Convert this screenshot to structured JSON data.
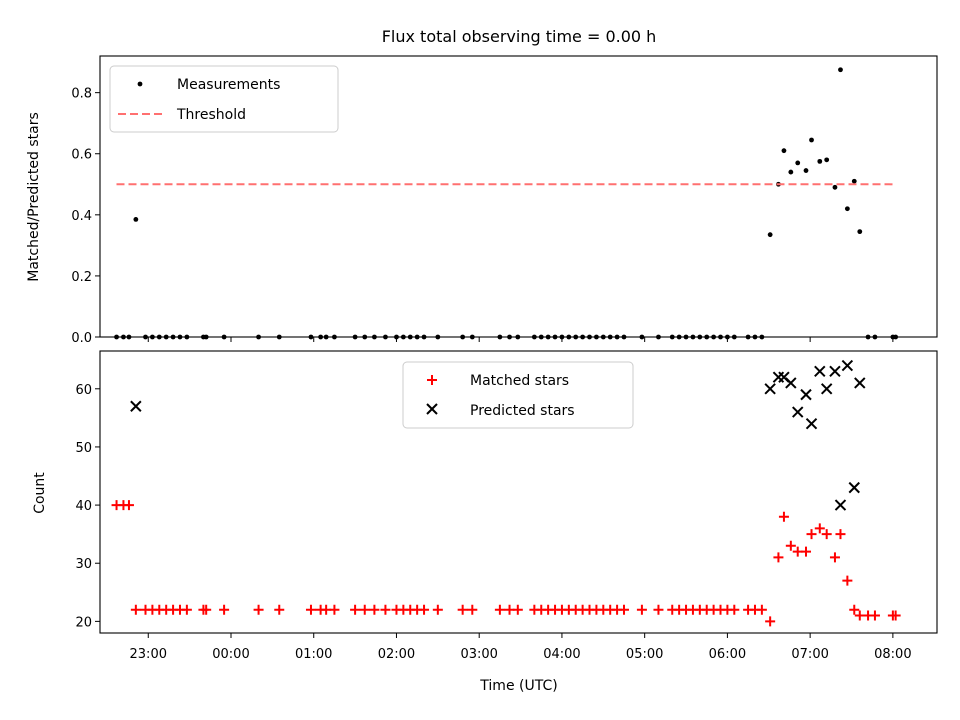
{
  "chart_data": [
    {
      "type": "scatter",
      "title": "Flux total observing time = 0.00 h",
      "xlabel": "",
      "ylabel": "Matched/Predicted stars",
      "ylim": [
        0,
        0.92
      ],
      "yticks": [
        "0.0",
        "0.2",
        "0.4",
        "0.6",
        "0.8"
      ],
      "xlim": [
        "22:25",
        "08:32"
      ],
      "legend": {
        "position": "top-left",
        "entries": [
          "Measurements",
          "Threshold"
        ]
      },
      "series": [
        {
          "name": "Measurements",
          "marker": "dot",
          "color": "#000000",
          "points": [
            [
              "22:37",
              0
            ],
            [
              "22:42",
              0
            ],
            [
              "22:46",
              0
            ],
            [
              "22:51",
              0.385
            ],
            [
              "22:58",
              0
            ],
            [
              "23:03",
              0
            ],
            [
              "23:08",
              0
            ],
            [
              "23:13",
              0
            ],
            [
              "23:18",
              0
            ],
            [
              "23:23",
              0
            ],
            [
              "23:28",
              0
            ],
            [
              "23:40",
              0
            ],
            [
              "23:42",
              0
            ],
            [
              "23:55",
              0
            ],
            [
              "24:20",
              0
            ],
            [
              "24:35",
              0
            ],
            [
              "24:58",
              0
            ],
            [
              "25:05",
              0
            ],
            [
              "25:09",
              0
            ],
            [
              "25:15",
              0
            ],
            [
              "25:30",
              0
            ],
            [
              "25:37",
              0
            ],
            [
              "25:44",
              0
            ],
            [
              "25:52",
              0
            ],
            [
              "26:00",
              0
            ],
            [
              "26:05",
              0
            ],
            [
              "26:10",
              0
            ],
            [
              "26:15",
              0
            ],
            [
              "26:20",
              0
            ],
            [
              "26:30",
              0
            ],
            [
              "26:48",
              0
            ],
            [
              "26:55",
              0
            ],
            [
              "27:15",
              0
            ],
            [
              "27:22",
              0
            ],
            [
              "27:28",
              0
            ],
            [
              "27:40",
              0
            ],
            [
              "27:45",
              0
            ],
            [
              "27:50",
              0
            ],
            [
              "27:55",
              0
            ],
            [
              "28:00",
              0
            ],
            [
              "28:05",
              0
            ],
            [
              "28:10",
              0
            ],
            [
              "28:15",
              0
            ],
            [
              "28:20",
              0
            ],
            [
              "28:25",
              0
            ],
            [
              "28:30",
              0
            ],
            [
              "28:35",
              0
            ],
            [
              "28:40",
              0
            ],
            [
              "28:45",
              0
            ],
            [
              "28:58",
              0
            ],
            [
              "29:10",
              0
            ],
            [
              "29:20",
              0
            ],
            [
              "29:25",
              0
            ],
            [
              "29:30",
              0
            ],
            [
              "29:35",
              0
            ],
            [
              "29:40",
              0
            ],
            [
              "29:45",
              0
            ],
            [
              "29:50",
              0
            ],
            [
              "29:55",
              0
            ],
            [
              "30:00",
              0
            ],
            [
              "30:05",
              0
            ],
            [
              "30:15",
              0
            ],
            [
              "30:20",
              0
            ],
            [
              "30:25",
              0
            ],
            [
              "30:31",
              0.335
            ],
            [
              "30:37",
              0.5
            ],
            [
              "30:41",
              0.61
            ],
            [
              "30:46",
              0.54
            ],
            [
              "30:51",
              0.57
            ],
            [
              "30:57",
              0.545
            ],
            [
              "31:01",
              0.645
            ],
            [
              "31:07",
              0.575
            ],
            [
              "31:12",
              0.58
            ],
            [
              "31:18",
              0.49
            ],
            [
              "31:22",
              0.875
            ],
            [
              "31:27",
              0.42
            ],
            [
              "31:32",
              0.51
            ],
            [
              "31:36",
              0.345
            ],
            [
              "31:42",
              0
            ],
            [
              "31:47",
              0
            ],
            [
              "32:00",
              0
            ],
            [
              "32:02",
              0
            ]
          ]
        },
        {
          "name": "Threshold",
          "line": "dashed",
          "color": "#ff7070",
          "points": [
            [
              "22:37",
              0.5
            ],
            [
              "32:00",
              0.5
            ]
          ]
        }
      ]
    },
    {
      "type": "scatter",
      "title": "",
      "xlabel": "Time (UTC)",
      "ylabel": "Count",
      "ylim": [
        18,
        66.5
      ],
      "yticks": [
        "20",
        "30",
        "40",
        "50",
        "60"
      ],
      "xticks": [
        "23:00",
        "00:00",
        "01:00",
        "02:00",
        "03:00",
        "04:00",
        "05:00",
        "06:00",
        "07:00",
        "08:00"
      ],
      "xlim": [
        "22:25",
        "08:32"
      ],
      "legend": {
        "position": "top-center",
        "entries": [
          "Matched stars",
          "Predicted stars"
        ]
      },
      "series": [
        {
          "name": "Matched stars",
          "marker": "plus",
          "color": "#ff0000",
          "points": [
            [
              "22:37",
              40
            ],
            [
              "22:42",
              40
            ],
            [
              "22:46",
              40
            ],
            [
              "22:51",
              22
            ],
            [
              "22:58",
              22
            ],
            [
              "23:03",
              22
            ],
            [
              "23:08",
              22
            ],
            [
              "23:13",
              22
            ],
            [
              "23:18",
              22
            ],
            [
              "23:23",
              22
            ],
            [
              "23:28",
              22
            ],
            [
              "23:40",
              22
            ],
            [
              "23:42",
              22
            ],
            [
              "23:55",
              22
            ],
            [
              "24:20",
              22
            ],
            [
              "24:35",
              22
            ],
            [
              "24:58",
              22
            ],
            [
              "25:05",
              22
            ],
            [
              "25:09",
              22
            ],
            [
              "25:15",
              22
            ],
            [
              "25:30",
              22
            ],
            [
              "25:37",
              22
            ],
            [
              "25:44",
              22
            ],
            [
              "25:52",
              22
            ],
            [
              "26:00",
              22
            ],
            [
              "26:05",
              22
            ],
            [
              "26:10",
              22
            ],
            [
              "26:15",
              22
            ],
            [
              "26:20",
              22
            ],
            [
              "26:30",
              22
            ],
            [
              "26:48",
              22
            ],
            [
              "26:55",
              22
            ],
            [
              "27:15",
              22
            ],
            [
              "27:22",
              22
            ],
            [
              "27:28",
              22
            ],
            [
              "27:40",
              22
            ],
            [
              "27:45",
              22
            ],
            [
              "27:50",
              22
            ],
            [
              "27:55",
              22
            ],
            [
              "28:00",
              22
            ],
            [
              "28:05",
              22
            ],
            [
              "28:10",
              22
            ],
            [
              "28:15",
              22
            ],
            [
              "28:20",
              22
            ],
            [
              "28:25",
              22
            ],
            [
              "28:30",
              22
            ],
            [
              "28:35",
              22
            ],
            [
              "28:40",
              22
            ],
            [
              "28:45",
              22
            ],
            [
              "28:58",
              22
            ],
            [
              "29:10",
              22
            ],
            [
              "29:20",
              22
            ],
            [
              "29:25",
              22
            ],
            [
              "29:30",
              22
            ],
            [
              "29:35",
              22
            ],
            [
              "29:40",
              22
            ],
            [
              "29:45",
              22
            ],
            [
              "29:50",
              22
            ],
            [
              "29:55",
              22
            ],
            [
              "30:00",
              22
            ],
            [
              "30:05",
              22
            ],
            [
              "30:15",
              22
            ],
            [
              "30:20",
              22
            ],
            [
              "30:25",
              22
            ],
            [
              "30:31",
              20
            ],
            [
              "30:37",
              31
            ],
            [
              "30:41",
              38
            ],
            [
              "30:46",
              33
            ],
            [
              "30:51",
              32
            ],
            [
              "30:57",
              32
            ],
            [
              "31:01",
              35
            ],
            [
              "31:07",
              36
            ],
            [
              "31:12",
              35
            ],
            [
              "31:18",
              31
            ],
            [
              "31:22",
              35
            ],
            [
              "31:27",
              27
            ],
            [
              "31:32",
              22
            ],
            [
              "31:36",
              21
            ],
            [
              "31:42",
              21
            ],
            [
              "31:47",
              21
            ],
            [
              "32:00",
              21
            ],
            [
              "32:02",
              21
            ]
          ]
        },
        {
          "name": "Predicted stars",
          "marker": "x",
          "color": "#000000",
          "points": [
            [
              "22:51",
              57
            ],
            [
              "30:31",
              60
            ],
            [
              "30:37",
              62
            ],
            [
              "30:41",
              62
            ],
            [
              "30:46",
              61
            ],
            [
              "30:51",
              56
            ],
            [
              "30:57",
              59
            ],
            [
              "31:01",
              54
            ],
            [
              "31:07",
              63
            ],
            [
              "31:12",
              60
            ],
            [
              "31:18",
              63
            ],
            [
              "31:22",
              40
            ],
            [
              "31:27",
              64
            ],
            [
              "31:32",
              43
            ],
            [
              "31:36",
              61
            ]
          ]
        }
      ]
    }
  ]
}
